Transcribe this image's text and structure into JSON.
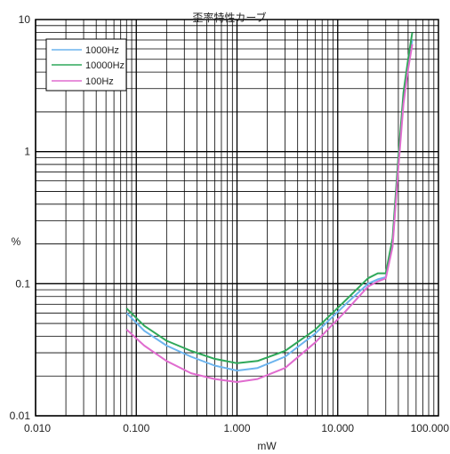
{
  "chart_data": {
    "type": "line",
    "title": "歪率特性カーブ",
    "xlabel": "mW",
    "ylabel": "%",
    "x_scale": "log",
    "y_scale": "log",
    "xlim": [
      0.01,
      100
    ],
    "ylim": [
      0.01,
      10
    ],
    "grid": true,
    "legend_position": "top-left",
    "x_tick_labels": [
      "0.010",
      "0.100",
      "1.000",
      "10.000",
      "100.000"
    ],
    "y_tick_labels": [
      "0.01",
      "0.1",
      "1",
      "10"
    ],
    "series": [
      {
        "name": "1000Hz",
        "color": "#6cb4ee",
        "x": [
          0.08,
          0.12,
          0.2,
          0.35,
          0.6,
          1.0,
          1.6,
          3.0,
          6.0,
          12.0,
          20.0,
          25.0,
          30.0,
          35.0,
          40.0,
          45.0,
          50.0,
          55.0
        ],
        "y": [
          0.06,
          0.044,
          0.034,
          0.028,
          0.024,
          0.022,
          0.023,
          0.028,
          0.042,
          0.07,
          0.1,
          0.108,
          0.112,
          0.2,
          0.8,
          2.5,
          4.5,
          7.0
        ]
      },
      {
        "name": "10000Hz",
        "color": "#2fa85a",
        "x": [
          0.08,
          0.12,
          0.2,
          0.35,
          0.6,
          1.0,
          1.6,
          3.0,
          6.0,
          12.0,
          20.0,
          25.0,
          30.0,
          35.0,
          40.0,
          45.0,
          50.0,
          55.0
        ],
        "y": [
          0.065,
          0.048,
          0.037,
          0.031,
          0.027,
          0.025,
          0.026,
          0.031,
          0.045,
          0.075,
          0.11,
          0.12,
          0.12,
          0.22,
          0.9,
          2.8,
          5.0,
          8.0
        ]
      },
      {
        "name": "100Hz",
        "color": "#e06ccf",
        "x": [
          0.08,
          0.12,
          0.2,
          0.35,
          0.6,
          1.0,
          1.6,
          3.0,
          6.0,
          12.0,
          20.0,
          25.0,
          30.0,
          35.0,
          40.0,
          45.0,
          50.0,
          55.0
        ],
        "y": [
          0.045,
          0.034,
          0.026,
          0.021,
          0.019,
          0.018,
          0.019,
          0.023,
          0.036,
          0.062,
          0.095,
          0.104,
          0.11,
          0.19,
          0.75,
          2.3,
          4.2,
          6.5
        ]
      }
    ]
  }
}
